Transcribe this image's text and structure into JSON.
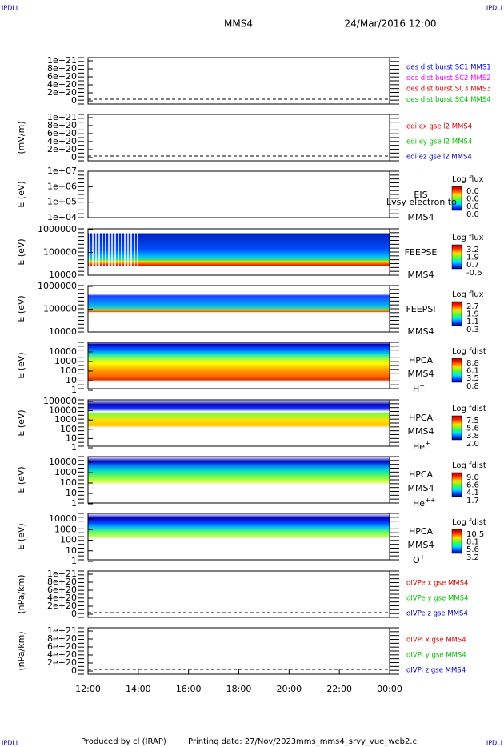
{
  "header": {
    "corner": "IPDLI",
    "spacecraft": "MMS4",
    "date": "24/Mar/2016 12:00"
  },
  "panels": [
    {
      "kind": "line",
      "yticks": [
        "1e+21",
        "8e+20",
        "6e+20",
        "4e+20",
        "2e+20",
        "0"
      ],
      "legend": [
        {
          "text": "des dist burst SC1 MMS1",
          "color": "#0000ff"
        },
        {
          "text": "des dist burst SC2 MMS2",
          "color": "#ff00ff"
        },
        {
          "text": "des dist burst SC3 MMS3",
          "color": "#e00000"
        },
        {
          "text": "des dist burst SC4 MMS4",
          "color": "#00c000"
        }
      ]
    },
    {
      "kind": "line",
      "ylabel": "(mV/m)",
      "yticks": [
        "1e+21",
        "8e+20",
        "6e+20",
        "4e+20",
        "2e+20",
        "0"
      ],
      "legend": [
        {
          "text": "edi ex gse l2 MMS4",
          "color": "#e00000"
        },
        {
          "text": "edi ey gse l2 MMS4",
          "color": "#00c000"
        },
        {
          "text": "edi ez gse l2 MMS4",
          "color": "#0000c0"
        }
      ]
    },
    {
      "kind": "spec",
      "ylabel": "E (eV)",
      "yticks": [
        "1e+07",
        "1e+06",
        "1e+05",
        "1e+04"
      ],
      "instrument": "EIS",
      "note": "Lvsy electron to",
      "sc": "MMS4",
      "cbar_title": "Log flux",
      "cbar_ticks": [
        "0.0",
        "0.0",
        "0.0",
        "0.0"
      ]
    },
    {
      "kind": "spec",
      "ylabel": "E (eV)",
      "yticks": [
        "1000000",
        "100000",
        "10000"
      ],
      "instrument": "FEEPSE",
      "sc": "MMS4",
      "cbar_title": "Log flux",
      "cbar_ticks": [
        "3.2",
        "1.9",
        "0.7",
        "-0.6"
      ]
    },
    {
      "kind": "spec",
      "ylabel": "E (eV)",
      "yticks": [
        "1000000",
        "100000",
        "10000"
      ],
      "instrument": "FEEPSI",
      "sc": "MMS4",
      "cbar_title": "Log flux",
      "cbar_ticks": [
        "2.7",
        "1.9",
        "1.1",
        "0.3"
      ]
    },
    {
      "kind": "spec",
      "ylabel": "E (eV)",
      "yticks": [
        "10000",
        "1000",
        "100",
        "10",
        "1"
      ],
      "instrument": "HPCA",
      "sc": "MMS4",
      "species": "H",
      "charge": "+",
      "cbar_title": "Log fdist",
      "cbar_ticks": [
        "8.8",
        "6.1",
        "3.5",
        "0.8"
      ]
    },
    {
      "kind": "spec",
      "ylabel": "E (eV)",
      "yticks": [
        "100000",
        "10000",
        "1000",
        "100",
        "10",
        "1"
      ],
      "instrument": "HPCA",
      "sc": "MMS4",
      "species": "He",
      "charge": "+",
      "cbar_title": "Log fdist",
      "cbar_ticks": [
        "7.5",
        "5.6",
        "3.8",
        "2.0"
      ]
    },
    {
      "kind": "spec",
      "ylabel": "E (eV)",
      "yticks": [
        "10000",
        "1000",
        "100",
        "10",
        "1"
      ],
      "instrument": "HPCA",
      "sc": "MMS4",
      "species": "He",
      "charge": "++",
      "cbar_title": "Log fdist",
      "cbar_ticks": [
        "9.0",
        "6.6",
        "4.1",
        "1.7"
      ]
    },
    {
      "kind": "spec",
      "ylabel": "E (eV)",
      "yticks": [
        "10000",
        "1000",
        "100",
        "10",
        "1"
      ],
      "instrument": "HPCA",
      "sc": "MMS4",
      "species": "O",
      "charge": "+",
      "cbar_title": "Log fdist",
      "cbar_ticks": [
        "10.5",
        "8.1",
        "5.6",
        "3.2"
      ]
    },
    {
      "kind": "line",
      "ylabel": "(nPa/km)",
      "yticks": [
        "1e+21",
        "8e+20",
        "6e+20",
        "4e+20",
        "2e+20",
        "0"
      ],
      "legend": [
        {
          "text": "dIVPe x gse MMS4",
          "color": "#e00000"
        },
        {
          "text": "dIVPe y gse MMS4",
          "color": "#00c000"
        },
        {
          "text": "dIVPe z gse MMS4",
          "color": "#0000c0"
        }
      ]
    },
    {
      "kind": "line",
      "ylabel": "(nPa/km)",
      "yticks": [
        "1e+21",
        "8e+20",
        "6e+20",
        "4e+20",
        "2e+20",
        "0"
      ],
      "legend": [
        {
          "text": "dIVPi x gse MMS4",
          "color": "#e00000"
        },
        {
          "text": "dIVPi y gse MMS4",
          "color": "#00c000"
        },
        {
          "text": "dIVPi z gse MMS4",
          "color": "#0000c0"
        }
      ]
    }
  ],
  "time_ticks": [
    "12:00",
    "14:00",
    "16:00",
    "18:00",
    "20:00",
    "22:00",
    "00:00"
  ],
  "footer": {
    "producer": "Produced by cl (IRAP)",
    "printing": "Printing date: 27/Nov/2023",
    "file": "mms_mms4_srvy_vue_web2.cl"
  }
}
